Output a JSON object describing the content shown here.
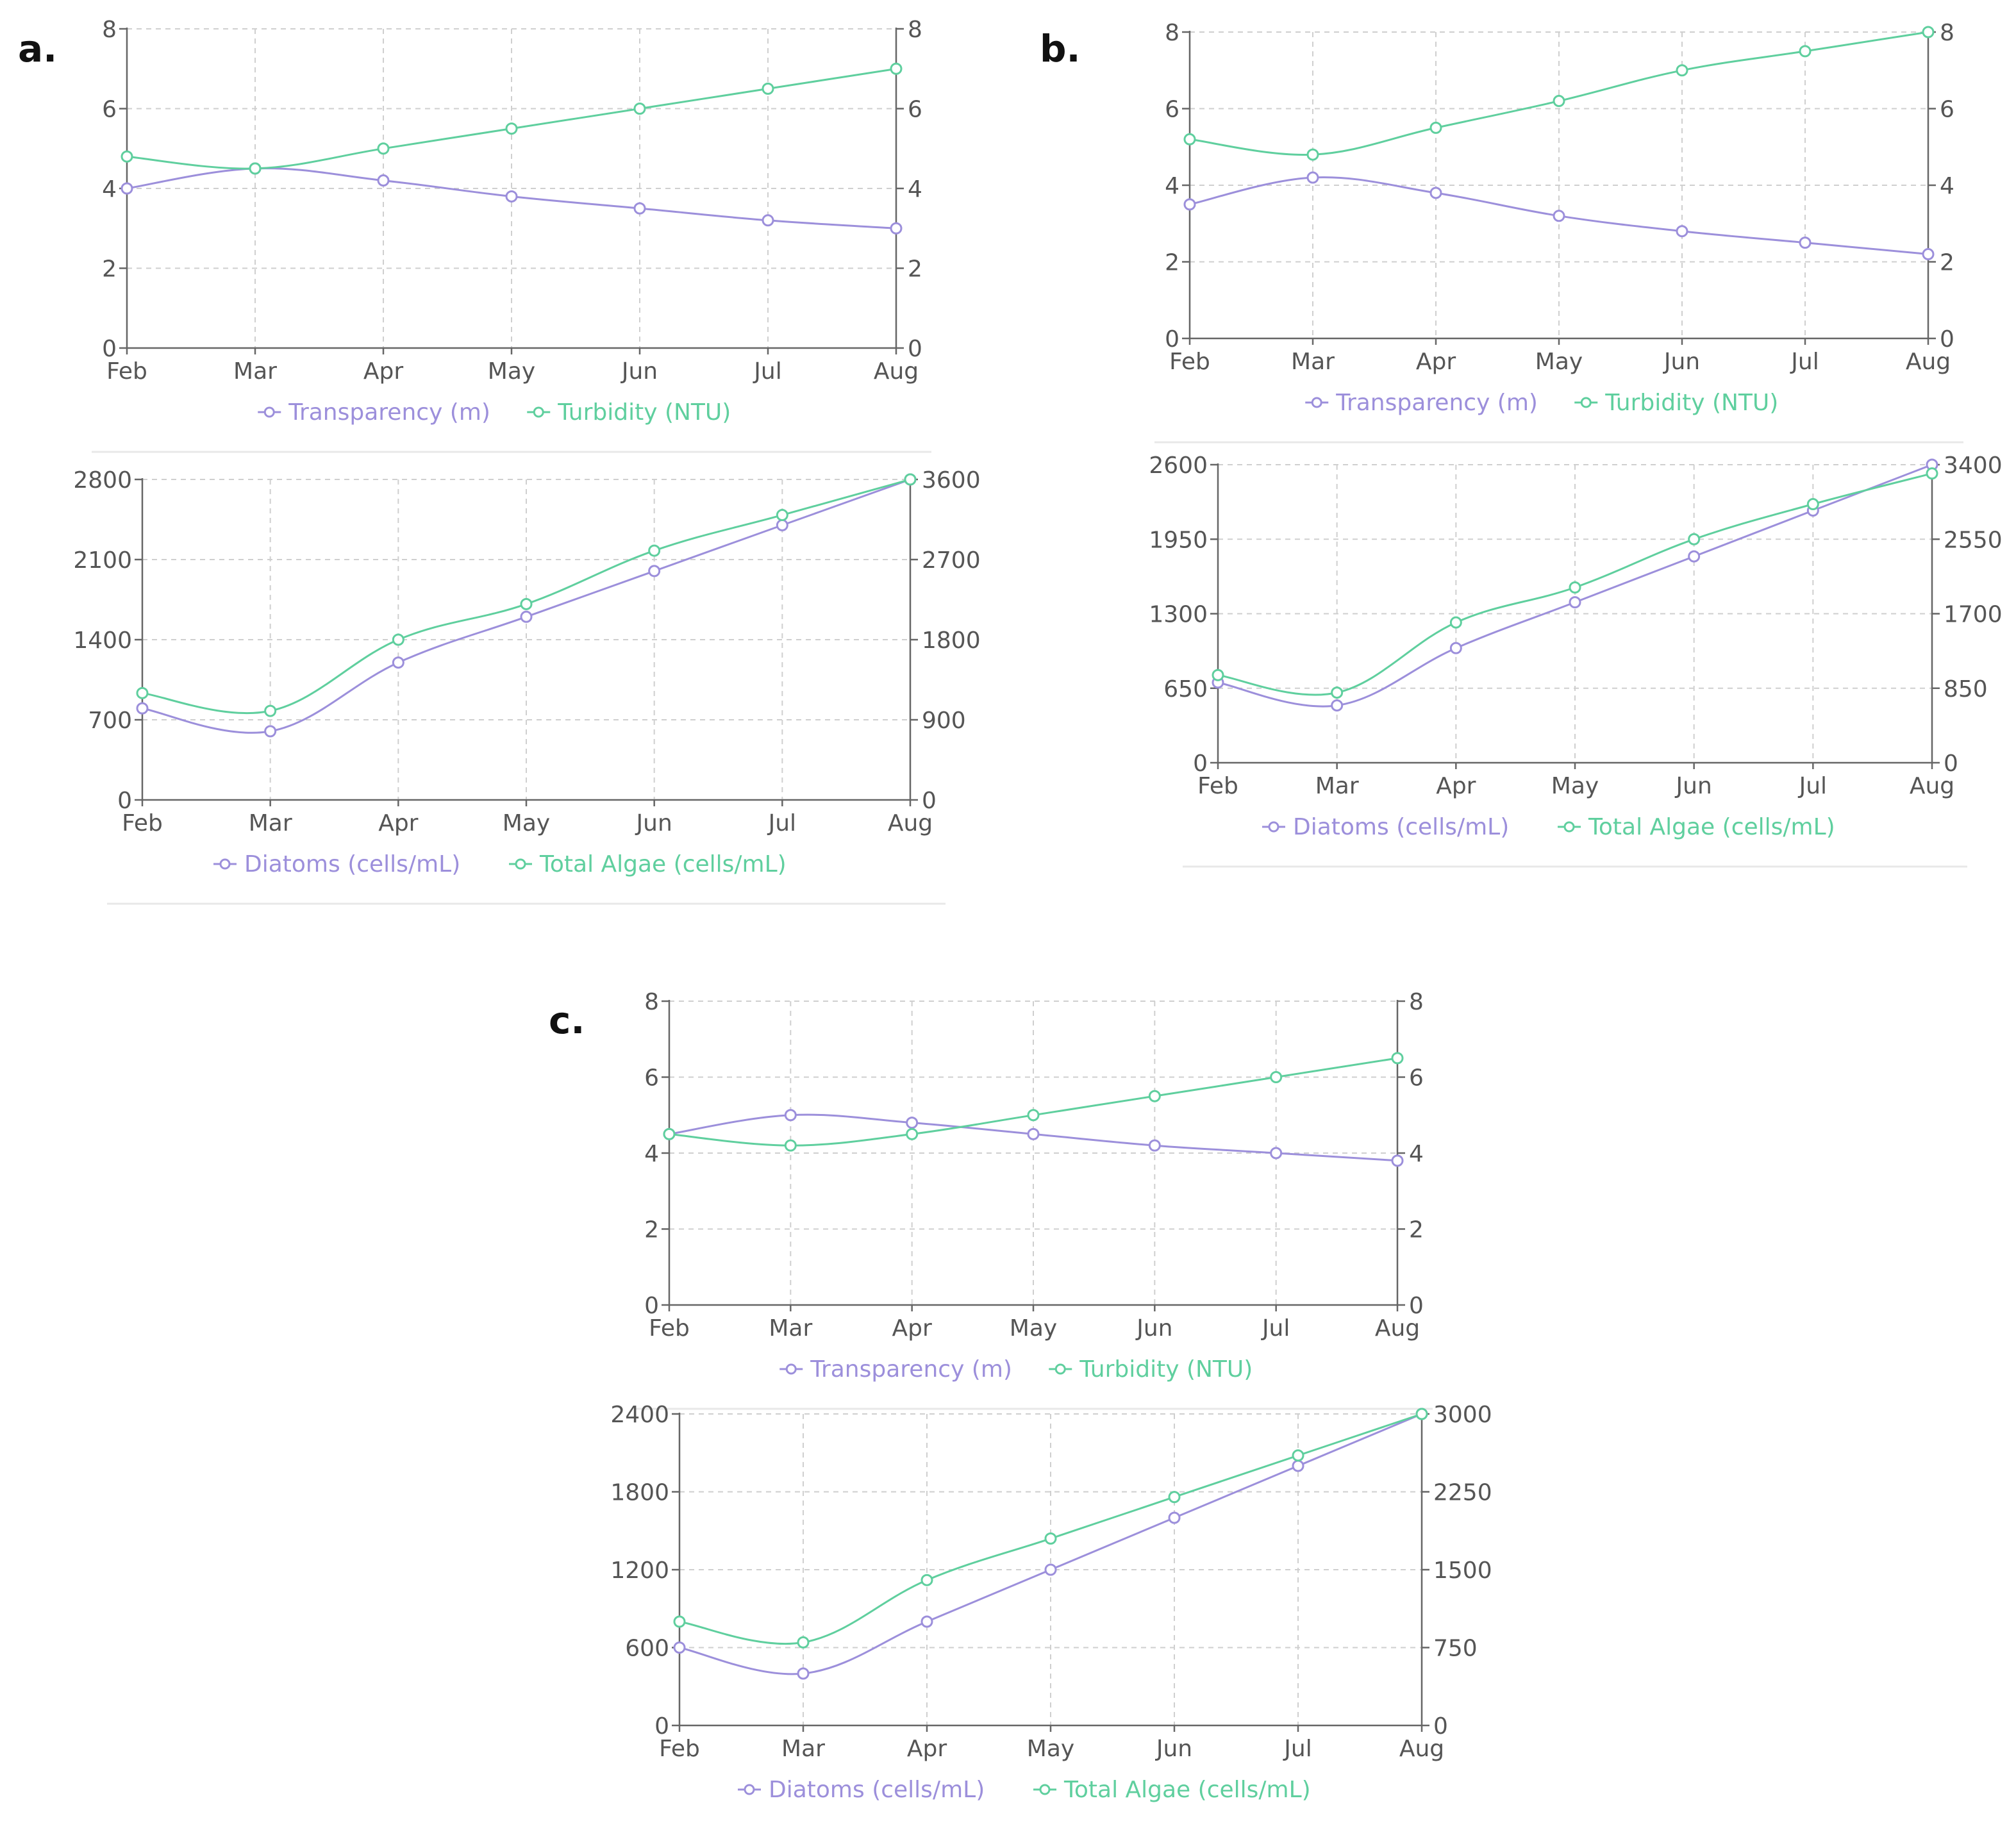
{
  "figure": {
    "panel_labels": [
      "a.",
      "b.",
      "c."
    ]
  },
  "colors": {
    "series1": "#9C8FDB",
    "series2": "#5FCF9E",
    "axis": "#666666",
    "grid": "#CFCFCF",
    "tick_text": "#555555",
    "label_text": "#111111"
  },
  "chart_data": [
    {
      "id": "a-top",
      "panel": "a.",
      "type": "line",
      "categories": [
        "Feb",
        "Mar",
        "Apr",
        "May",
        "Jun",
        "Jul",
        "Aug"
      ],
      "series": [
        {
          "name": "Transparency (m)",
          "axis": "left",
          "values": [
            4.0,
            4.5,
            4.2,
            3.8,
            3.5,
            3.2,
            3.0
          ]
        },
        {
          "name": "Turbidity (NTU)",
          "axis": "right",
          "values": [
            4.8,
            4.5,
            5.0,
            5.5,
            6.0,
            6.5,
            7.0
          ]
        }
      ],
      "left_axis": {
        "min": 0,
        "max": 8,
        "ticks": [
          "0",
          "2",
          "4",
          "6",
          "8"
        ]
      },
      "right_axis": {
        "min": 0,
        "max": 8,
        "ticks": [
          "0",
          "2",
          "4",
          "6",
          "8"
        ]
      },
      "legend": "bottom-center",
      "grid": true
    },
    {
      "id": "a-bottom",
      "panel": "a.",
      "type": "line",
      "categories": [
        "Feb",
        "Mar",
        "Apr",
        "May",
        "Jun",
        "Jul",
        "Aug"
      ],
      "series": [
        {
          "name": "Diatoms (cells/mL)",
          "axis": "left",
          "values": [
            800,
            600,
            1200,
            1600,
            2000,
            2400,
            2800
          ]
        },
        {
          "name": "Total Algae (cells/mL)",
          "axis": "right",
          "values": [
            1200,
            1000,
            1800,
            2200,
            2800,
            3200,
            3600
          ]
        }
      ],
      "left_axis": {
        "min": 0,
        "max": 2800,
        "ticks": [
          "0",
          "700",
          "1400",
          "2100",
          "2800"
        ]
      },
      "right_axis": {
        "min": 0,
        "max": 3600,
        "ticks": [
          "0",
          "900",
          "1800",
          "2700",
          "3600"
        ]
      },
      "legend": "bottom-center",
      "grid": true
    },
    {
      "id": "b-top",
      "panel": "b.",
      "type": "line",
      "categories": [
        "Feb",
        "Mar",
        "Apr",
        "May",
        "Jun",
        "Jul",
        "Aug"
      ],
      "series": [
        {
          "name": "Transparency (m)",
          "axis": "left",
          "values": [
            3.5,
            4.2,
            3.8,
            3.2,
            2.8,
            2.5,
            2.2
          ]
        },
        {
          "name": "Turbidity (NTU)",
          "axis": "right",
          "values": [
            5.2,
            4.8,
            5.5,
            6.2,
            7.0,
            7.5,
            8.0
          ]
        }
      ],
      "left_axis": {
        "min": 0,
        "max": 8,
        "ticks": [
          "0",
          "2",
          "4",
          "6",
          "8"
        ]
      },
      "right_axis": {
        "min": 0,
        "max": 8,
        "ticks": [
          "0",
          "2",
          "4",
          "6",
          "8"
        ]
      },
      "legend": "bottom-center",
      "grid": true
    },
    {
      "id": "b-bottom",
      "panel": "b.",
      "type": "line",
      "categories": [
        "Feb",
        "Mar",
        "Apr",
        "May",
        "Jun",
        "Jul",
        "Aug"
      ],
      "series": [
        {
          "name": "Diatoms (cells/mL)",
          "axis": "left",
          "values": [
            700,
            500,
            1000,
            1400,
            1800,
            2200,
            2600
          ]
        },
        {
          "name": "Total Algae (cells/mL)",
          "axis": "right",
          "values": [
            1000,
            800,
            1600,
            2000,
            2550,
            2950,
            3300
          ]
        }
      ],
      "left_axis": {
        "min": 0,
        "max": 2600,
        "ticks": [
          "0",
          "650",
          "1300",
          "1950",
          "2600"
        ]
      },
      "right_axis": {
        "min": 0,
        "max": 3400,
        "ticks": [
          "0",
          "850",
          "1700",
          "2550",
          "3400"
        ]
      },
      "legend": "bottom-center",
      "grid": true
    },
    {
      "id": "c-top",
      "panel": "c.",
      "type": "line",
      "categories": [
        "Feb",
        "Mar",
        "Apr",
        "May",
        "Jun",
        "Jul",
        "Aug"
      ],
      "series": [
        {
          "name": "Transparency (m)",
          "axis": "left",
          "values": [
            4.5,
            5.0,
            4.8,
            4.5,
            4.2,
            4.0,
            3.8
          ]
        },
        {
          "name": "Turbidity (NTU)",
          "axis": "right",
          "values": [
            4.5,
            4.2,
            4.5,
            5.0,
            5.5,
            6.0,
            6.5
          ]
        }
      ],
      "left_axis": {
        "min": 0,
        "max": 8,
        "ticks": [
          "0",
          "2",
          "4",
          "6",
          "8"
        ]
      },
      "right_axis": {
        "min": 0,
        "max": 8,
        "ticks": [
          "0",
          "2",
          "4",
          "6",
          "8"
        ]
      },
      "legend": "bottom-center",
      "grid": true
    },
    {
      "id": "c-bottom",
      "panel": "c.",
      "type": "line",
      "categories": [
        "Feb",
        "Mar",
        "Apr",
        "May",
        "Jun",
        "Jul",
        "Aug"
      ],
      "series": [
        {
          "name": "Diatoms (cells/mL)",
          "axis": "left",
          "values": [
            600,
            400,
            800,
            1200,
            1600,
            2000,
            2400
          ]
        },
        {
          "name": "Total Algae (cells/mL)",
          "axis": "right",
          "values": [
            1000,
            800,
            1400,
            1800,
            2200,
            2600,
            3000
          ]
        }
      ],
      "left_axis": {
        "min": 0,
        "max": 2400,
        "ticks": [
          "0",
          "600",
          "1200",
          "1800",
          "2400"
        ]
      },
      "right_axis": {
        "min": 0,
        "max": 3000,
        "ticks": [
          "0",
          "750",
          "1500",
          "2250",
          "3000"
        ]
      },
      "legend": "bottom-center",
      "grid": true
    }
  ]
}
